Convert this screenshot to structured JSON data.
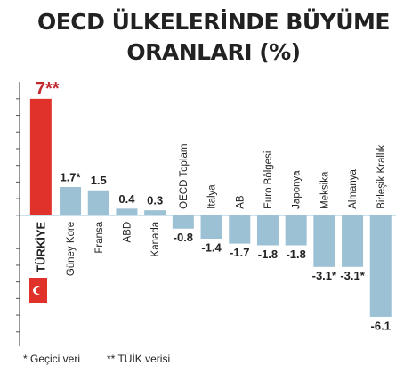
{
  "chart_data": {
    "type": "bar",
    "title": [
      "OECD ÜLKELERİNDE BÜYÜME",
      "ORANLARI (%)"
    ],
    "categories": [
      "TÜRKİYE",
      "Güney Kore",
      "Fransa",
      "ABD",
      "Kanada",
      "OECD Toplam",
      "İtalya",
      "AB",
      "Euro Bölgesi",
      "Japonya",
      "Meksika",
      "Almanya",
      "Birleşik Krallık"
    ],
    "values": [
      7,
      1.7,
      1.5,
      0.4,
      0.3,
      -0.8,
      -1.4,
      -1.7,
      -1.8,
      -1.8,
      -3.1,
      -3.1,
      -6.1
    ],
    "value_labels": [
      "7**",
      "1.7*",
      "1.5",
      "0.4",
      "0.3",
      "-0.8",
      "-1.4",
      "-1.7",
      "-1.8",
      "-1.8",
      "-3.1*",
      "-3.1*",
      "-6.1"
    ],
    "colors": [
      "#e0312b",
      "#9cc0d4",
      "#9cc0d4",
      "#9cc0d4",
      "#9cc0d4",
      "#9cc0d4",
      "#9cc0d4",
      "#9cc0d4",
      "#9cc0d4",
      "#9cc0d4",
      "#9cc0d4",
      "#9cc0d4",
      "#9cc0d4"
    ],
    "ylim": [
      -7.6,
      7.9
    ],
    "yticks": [
      -7,
      -6,
      -5,
      -4,
      -3,
      -2,
      -1,
      0,
      1,
      2,
      3,
      4,
      5,
      6,
      7
    ],
    "footnotes": [
      "* Geçici veri",
      "** TÜİK verisi"
    ]
  }
}
